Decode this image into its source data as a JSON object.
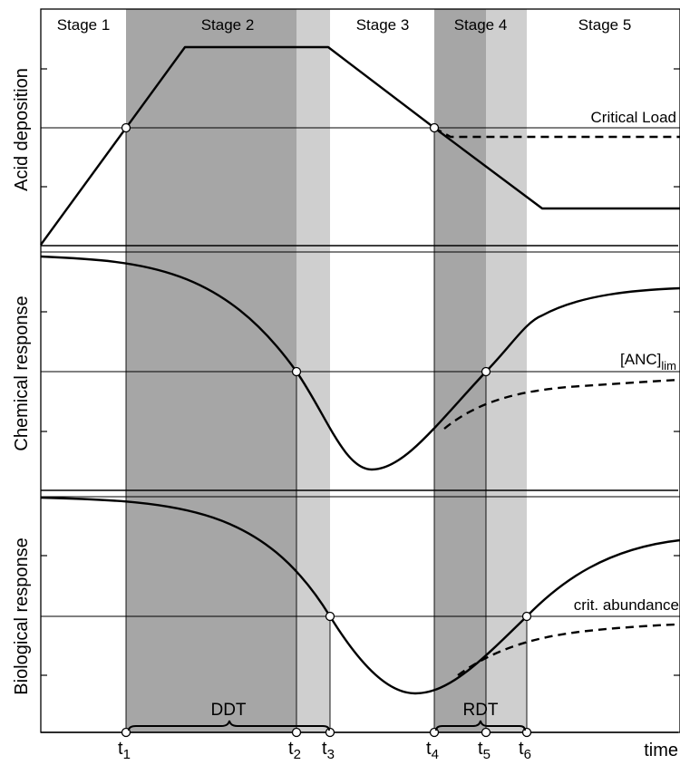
{
  "colors": {
    "dark_band": "#a6a6a6",
    "light_band": "#cfcfcf",
    "curve": "#000000",
    "background": "#ffffff"
  },
  "stages": [
    "Stage 1",
    "Stage 2",
    "Stage 3",
    "Stage 4",
    "Stage 5"
  ],
  "panels": {
    "top": {
      "ylabel": "Acid deposition",
      "threshold_label": "Critical Load"
    },
    "middle": {
      "ylabel": "Chemical response",
      "threshold_label": "[ANC]",
      "threshold_sub": "lim"
    },
    "bottom": {
      "ylabel": "Biological response",
      "threshold_label": "crit. abundance"
    }
  },
  "time_marks": {
    "t1": {
      "t": "t",
      "s": "1"
    },
    "t2": {
      "t": "t",
      "s": "2"
    },
    "t3": {
      "t": "t",
      "s": "3"
    },
    "t4": {
      "t": "t",
      "s": "4"
    },
    "t5": {
      "t": "t",
      "s": "5"
    },
    "t6": {
      "t": "t",
      "s": "6"
    }
  },
  "xlabel": "time",
  "brackets": {
    "left": "DDT",
    "right": "RDT"
  }
}
